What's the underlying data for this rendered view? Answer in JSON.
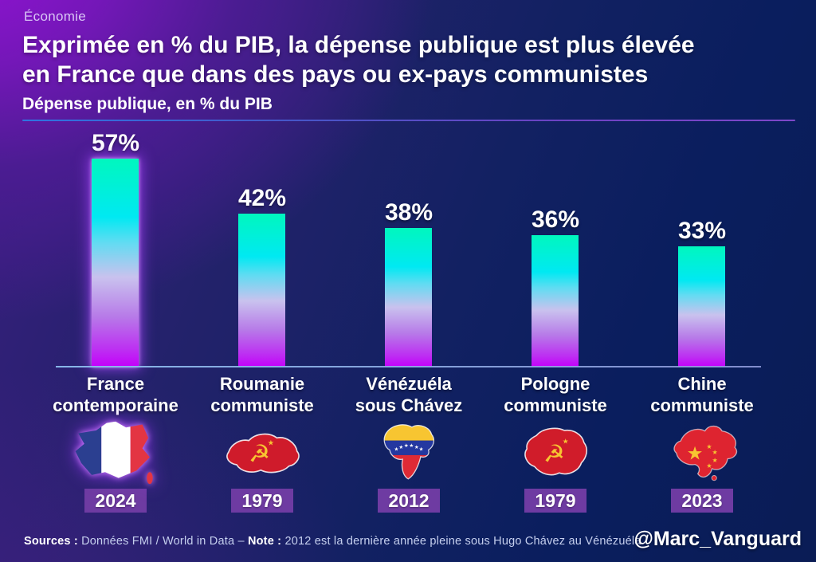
{
  "kicker": "Économie",
  "title_line1": "Exprimée en % du PIB, la dépense publique est plus élevée",
  "title_line2": "en France que dans des pays ou ex-pays communistes",
  "subtitle": "Dépense publique, en % du PIB",
  "chart_data": {
    "type": "bar",
    "title": "Dépense publique, en % du PIB",
    "categories": [
      "France contemporaine",
      "Roumanie communiste",
      "Vénézuéla sous Chávez",
      "Pologne communiste",
      "Chine communiste"
    ],
    "values": [
      57,
      42,
      38,
      36,
      33
    ],
    "value_labels": [
      "57%",
      "42%",
      "38%",
      "36%",
      "33%"
    ],
    "years": [
      "2024",
      "1979",
      "2012",
      "1979",
      "2023"
    ],
    "xlabel": "",
    "ylabel": "Dépense publique en % du PIB",
    "ylim": [
      0,
      60
    ],
    "grid": false,
    "legend": "none",
    "highlight_index": 0,
    "bar_gradient_top_to_bottom": [
      "#00F7BE",
      "#00E9F2",
      "#C9C2EE",
      "#C400FA"
    ],
    "flag_icons": [
      "france-map-flag",
      "romania-communist-map-flag",
      "venezuela-map-flag",
      "poland-communist-map-flag",
      "china-map-flag"
    ]
  },
  "bars": [
    {
      "label_line1": "France",
      "label_line2": "contemporaine",
      "value": 57,
      "value_label": "57%",
      "year": "2024"
    },
    {
      "label_line1": "Roumanie",
      "label_line2": "communiste",
      "value": 42,
      "value_label": "42%",
      "year": "1979"
    },
    {
      "label_line1": "Vénézuéla",
      "label_line2": "sous Chávez",
      "value": 38,
      "value_label": "38%",
      "year": "2012"
    },
    {
      "label_line1": "Pologne",
      "label_line2": "communiste",
      "value": 36,
      "value_label": "36%",
      "year": "1979"
    },
    {
      "label_line1": "Chine",
      "label_line2": "communiste",
      "value": 33,
      "value_label": "33%",
      "year": "2023"
    }
  ],
  "footer": {
    "sources_label": "Sources :",
    "sources_text": " Données FMI / World in Data – ",
    "note_label": "Note :",
    "note_text": " 2012 est la dernière année pleine sous Hugo Chávez au Vénézuéla",
    "credit": "@Marc_Vanguard"
  },
  "colors": {
    "background_purple": "#8A14C0",
    "background_navy": "#0A2065",
    "bar_top": "#00F7BE",
    "bar_bottom": "#C400FA",
    "year_badge_bg": "#6E3BA2",
    "kicker_text": "#D9C7F5",
    "footer_text": "#C5CFEE",
    "france_blue": "#2B3F90",
    "france_red": "#E33543",
    "communist_red": "#CF1B2B",
    "emblem_yellow": "#F7C531",
    "venezuela_yellow": "#F7C531",
    "venezuela_blue": "#2438A0",
    "venezuela_red": "#DE2A35"
  }
}
